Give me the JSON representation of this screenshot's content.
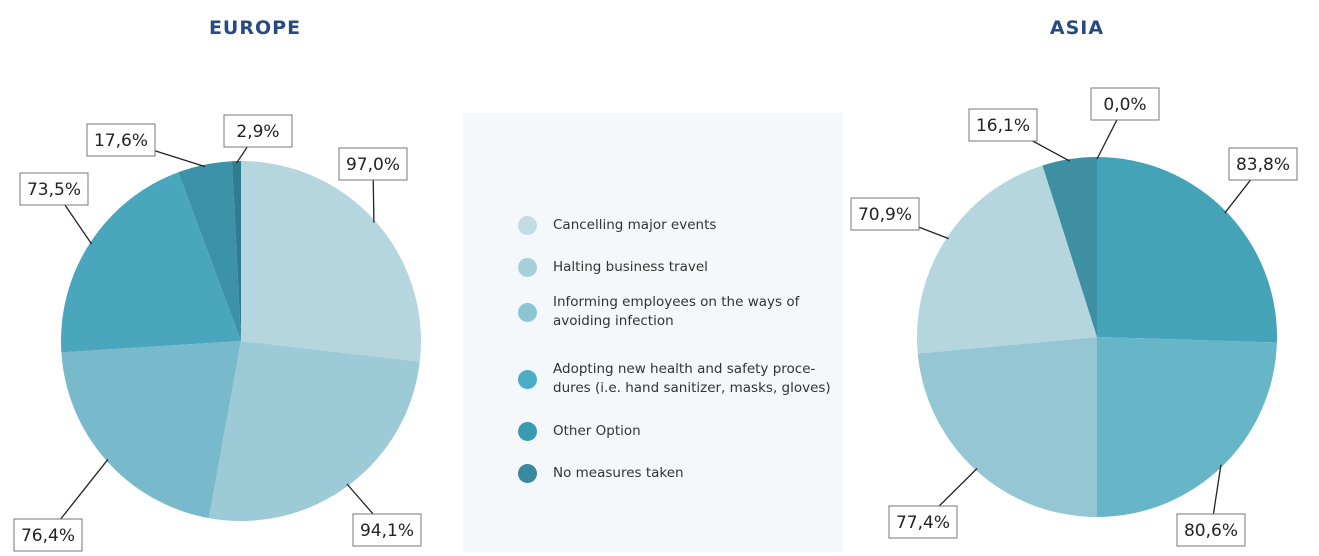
{
  "chart_data": [
    {
      "type": "pie",
      "title": "EUROPE",
      "values": [
        97.0,
        94.1,
        76.4,
        73.5,
        17.6,
        2.9
      ],
      "value_labels": [
        "97,0%",
        "94,1%",
        "76,4%",
        "73,5%",
        "17,6%",
        "2,9%"
      ],
      "colors": [
        "#b5d6de",
        "#9ccad6",
        "#78b9cb",
        "#4aa6bd",
        "#3c93a9",
        "#2f7c93"
      ]
    },
    {
      "type": "pie",
      "title": "ASIA",
      "values": [
        83.8,
        80.6,
        77.4,
        70.9,
        16.1,
        0.0
      ],
      "value_labels": [
        "83,8%",
        "80,6%",
        "77,4%",
        "70,9%",
        "16,1%",
        "0,0%"
      ],
      "colors": [
        "#45a3b8",
        "#67b6c8",
        "#95c6d4",
        "#b5d6df",
        "#3f8fa3",
        "#2f7c93"
      ]
    }
  ],
  "legend": {
    "labels": [
      "Cancelling major events",
      "Halting business travel",
      "Informing employees on the ways of\navoiding infection",
      "Adopting new health and safety proce-\ndures (i.e. hand sanitizer, masks, gloves)",
      "Other Option",
      "No measures taken"
    ],
    "colors": [
      "#c0dde4",
      "#a6d0da",
      "#8ac5d3",
      "#4aaec5",
      "#3a9bb0",
      "#3a87a0"
    ]
  }
}
